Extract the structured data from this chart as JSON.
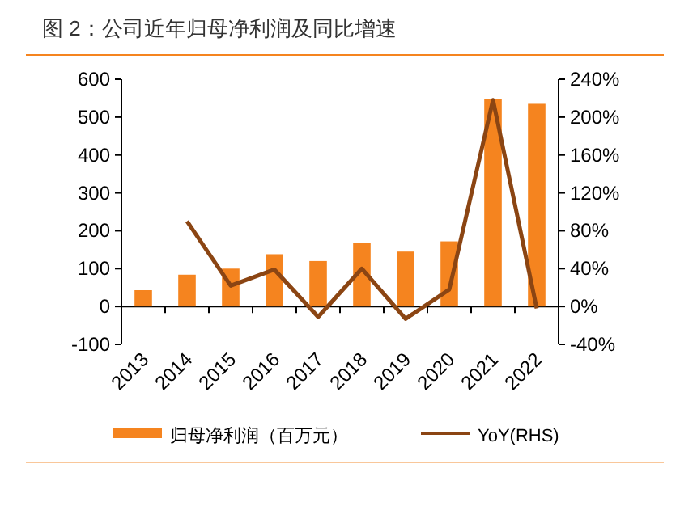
{
  "chart_data": {
    "type": "bar",
    "title": "图 2：公司近年归母净利润及同比增速",
    "categories": [
      "2013",
      "2014",
      "2015",
      "2016",
      "2017",
      "2018",
      "2019",
      "2020",
      "2021",
      "2022"
    ],
    "series": [
      {
        "name": "归母净利润（百万元）",
        "color": "#f5841f",
        "values": [
          43,
          84,
          100,
          138,
          120,
          168,
          145,
          172,
          547,
          535
        ]
      },
      {
        "name": "YoY(RHS)",
        "type": "line",
        "axis": "y2",
        "color": "#8b4513",
        "values": [
          null,
          90,
          22,
          39,
          -11,
          40,
          -13,
          18,
          218,
          -2
        ]
      }
    ],
    "ylim": [
      -100,
      600
    ],
    "yticks": [
      -100,
      0,
      100,
      200,
      300,
      400,
      500,
      600
    ],
    "y2lim": [
      -40,
      240
    ],
    "y2ticks": [
      {
        "value": -40,
        "label": "-40%"
      },
      {
        "value": 0,
        "label": "0%"
      },
      {
        "value": 40,
        "label": "40%"
      },
      {
        "value": 80,
        "label": "80%"
      },
      {
        "value": 120,
        "label": "120%"
      },
      {
        "value": 160,
        "label": "160%"
      },
      {
        "value": 200,
        "label": "200%"
      },
      {
        "value": 240,
        "label": "240%"
      }
    ],
    "legend": "bottom"
  }
}
